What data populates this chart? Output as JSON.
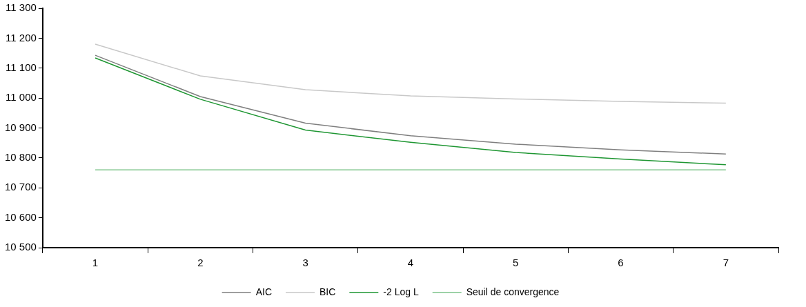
{
  "chart_data": {
    "type": "line",
    "categories": [
      "1",
      "2",
      "3",
      "4",
      "5",
      "6",
      "7"
    ],
    "series": [
      {
        "name": "AIC",
        "color": "#7f7f7f",
        "values": [
          11143,
          11005,
          10916,
          10874,
          10846,
          10827,
          10813
        ]
      },
      {
        "name": "BIC",
        "color": "#c8c8c8",
        "values": [
          11180,
          11074,
          11028,
          11007,
          10997,
          10989,
          10983
        ]
      },
      {
        "name": "-2 Log L",
        "color": "#1e9632",
        "values": [
          11134,
          10996,
          10893,
          10852,
          10818,
          10796,
          10777
        ]
      },
      {
        "name": "Seuil de convergence",
        "color": "#7cc48a",
        "values": [
          10760,
          10760,
          10760,
          10760,
          10760,
          10760,
          10760
        ]
      }
    ],
    "ylim": [
      10500,
      11300
    ],
    "yticks": [
      {
        "value": 10500,
        "label": "10 500"
      },
      {
        "value": 10600,
        "label": "10 600"
      },
      {
        "value": 10700,
        "label": "10 700"
      },
      {
        "value": 10800,
        "label": "10 800"
      },
      {
        "value": 10900,
        "label": "10 900"
      },
      {
        "value": 11000,
        "label": "11 000"
      },
      {
        "value": 11100,
        "label": "11 100"
      },
      {
        "value": 11200,
        "label": "11 200"
      },
      {
        "value": 11300,
        "label": "11 300"
      }
    ],
    "grid": false,
    "legend": "bottom",
    "marker": "none",
    "line_style": "solid"
  }
}
